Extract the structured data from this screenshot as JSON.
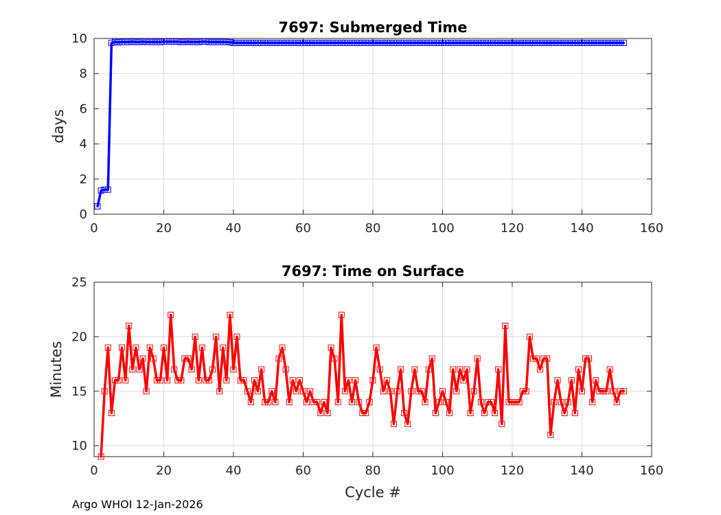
{
  "footer": {
    "text": "Argo WHOI 12-Jan-2026"
  },
  "chart_data": [
    {
      "type": "line",
      "title": "7697: Submerged Time",
      "xlabel": "",
      "ylabel": "days",
      "xlim": [
        0,
        160
      ],
      "ylim": [
        0,
        10
      ],
      "xticks": [
        0,
        20,
        40,
        60,
        80,
        100,
        120,
        140,
        160
      ],
      "yticks": [
        0,
        2,
        4,
        6,
        8,
        10
      ],
      "grid": true,
      "marker": "square",
      "color": "#0000ff",
      "series": [
        {
          "x": [
            1,
            2,
            3,
            4,
            5,
            6,
            7,
            8,
            9,
            10,
            11,
            12,
            13,
            14,
            15,
            16,
            17,
            18,
            19,
            20,
            21,
            22,
            23,
            24,
            25,
            26,
            27,
            28,
            29,
            30,
            31,
            32,
            33,
            34,
            35,
            36,
            37,
            38,
            39,
            40,
            41,
            42,
            43,
            44,
            45,
            46,
            47,
            48,
            49,
            50,
            51,
            52,
            53,
            54,
            55,
            56,
            57,
            58,
            59,
            60,
            61,
            62,
            63,
            64,
            65,
            66,
            67,
            68,
            69,
            70,
            71,
            72,
            73,
            74,
            75,
            76,
            77,
            78,
            79,
            80,
            81,
            82,
            83,
            84,
            85,
            86,
            87,
            88,
            89,
            90,
            91,
            92,
            93,
            94,
            95,
            96,
            97,
            98,
            99,
            100,
            101,
            102,
            103,
            104,
            105,
            106,
            107,
            108,
            109,
            110,
            111,
            112,
            113,
            114,
            115,
            116,
            117,
            118,
            119,
            120,
            121,
            122,
            123,
            124,
            125,
            126,
            127,
            128,
            129,
            130,
            131,
            132,
            133,
            134,
            135,
            136,
            137,
            138,
            139,
            140,
            141,
            142,
            143,
            144,
            145,
            146,
            147,
            148,
            149,
            150,
            151,
            152
          ],
          "values": [
            0.45,
            1.35,
            1.4,
            1.4,
            9.75,
            9.8,
            9.78,
            9.8,
            9.8,
            9.8,
            9.82,
            9.8,
            9.8,
            9.82,
            9.8,
            9.8,
            9.8,
            9.8,
            9.8,
            9.82,
            9.82,
            9.82,
            9.82,
            9.82,
            9.8,
            9.8,
            9.82,
            9.8,
            9.8,
            9.8,
            9.82,
            9.82,
            9.8,
            9.8,
            9.8,
            9.8,
            9.8,
            9.8,
            9.78,
            9.75,
            9.75,
            9.75,
            9.75,
            9.75,
            9.75,
            9.75,
            9.75,
            9.75,
            9.75,
            9.75,
            9.75,
            9.75,
            9.75,
            9.75,
            9.75,
            9.75,
            9.75,
            9.75,
            9.75,
            9.75,
            9.75,
            9.75,
            9.75,
            9.75,
            9.75,
            9.75,
            9.75,
            9.75,
            9.75,
            9.75,
            9.75,
            9.75,
            9.75,
            9.75,
            9.75,
            9.75,
            9.75,
            9.75,
            9.75,
            9.75,
            9.75,
            9.75,
            9.75,
            9.75,
            9.75,
            9.75,
            9.75,
            9.75,
            9.75,
            9.75,
            9.75,
            9.75,
            9.75,
            9.75,
            9.75,
            9.75,
            9.75,
            9.75,
            9.75,
            9.75,
            9.75,
            9.75,
            9.75,
            9.75,
            9.75,
            9.75,
            9.75,
            9.75,
            9.75,
            9.75,
            9.75,
            9.75,
            9.75,
            9.75,
            9.75,
            9.75,
            9.75,
            9.75,
            9.75,
            9.75,
            9.75,
            9.75,
            9.75,
            9.75,
            9.75,
            9.75,
            9.75,
            9.75,
            9.75,
            9.75,
            9.75,
            9.75,
            9.75,
            9.75,
            9.75,
            9.75,
            9.75,
            9.75,
            9.75,
            9.75,
            9.75,
            9.75,
            9.75,
            9.75,
            9.75,
            9.75,
            9.75,
            9.75,
            9.75,
            9.75,
            9.75,
            9.75
          ]
        }
      ]
    },
    {
      "type": "line",
      "title": "7697: Time on Surface",
      "xlabel": "Cycle #",
      "ylabel": "Minutes",
      "xlim": [
        0,
        160
      ],
      "ylim": [
        9,
        25
      ],
      "xticks": [
        0,
        20,
        40,
        60,
        80,
        100,
        120,
        140,
        160
      ],
      "yticks": [
        10,
        15,
        20,
        25
      ],
      "grid": true,
      "marker": "square",
      "color": "#ff0000",
      "series": [
        {
          "x": [
            2,
            3,
            4,
            5,
            6,
            7,
            8,
            9,
            10,
            11,
            12,
            13,
            14,
            15,
            16,
            17,
            18,
            19,
            20,
            21,
            22,
            23,
            24,
            25,
            26,
            27,
            28,
            29,
            30,
            31,
            32,
            33,
            34,
            35,
            36,
            37,
            38,
            39,
            40,
            41,
            42,
            43,
            44,
            45,
            46,
            47,
            48,
            49,
            50,
            51,
            52,
            53,
            54,
            55,
            56,
            57,
            58,
            59,
            60,
            61,
            62,
            63,
            64,
            65,
            66,
            67,
            68,
            69,
            70,
            71,
            72,
            73,
            74,
            75,
            76,
            77,
            78,
            79,
            80,
            81,
            82,
            83,
            84,
            85,
            86,
            87,
            88,
            89,
            90,
            91,
            92,
            93,
            94,
            95,
            96,
            97,
            98,
            99,
            100,
            101,
            102,
            103,
            104,
            105,
            106,
            107,
            108,
            109,
            110,
            111,
            112,
            113,
            114,
            115,
            116,
            117,
            118,
            119,
            120,
            121,
            122,
            123,
            124,
            125,
            126,
            127,
            128,
            129,
            130,
            131,
            132,
            133,
            134,
            135,
            136,
            137,
            138,
            139,
            140,
            141,
            142,
            143,
            144,
            145,
            146,
            147,
            148,
            149,
            150,
            151,
            152
          ],
          "values": [
            9,
            15,
            19,
            13,
            16,
            16,
            19,
            16,
            21,
            17,
            19,
            17,
            18,
            15,
            19,
            18,
            16,
            16,
            19,
            16,
            22,
            17,
            16,
            16,
            18,
            18,
            17,
            20,
            16,
            19,
            16,
            16,
            17,
            20,
            15,
            19,
            16,
            22,
            17,
            20,
            16,
            16,
            15,
            14,
            16,
            15,
            17,
            14,
            14,
            15,
            14,
            18,
            19,
            17,
            14,
            16,
            15,
            16,
            15,
            14,
            15,
            14,
            14,
            13,
            14,
            13,
            19,
            18,
            14,
            22,
            15,
            16,
            14,
            16,
            14,
            13,
            13,
            14,
            16,
            19,
            17,
            15,
            16,
            15,
            12,
            15,
            17,
            13,
            12,
            15,
            17,
            15,
            15,
            14,
            17,
            18,
            13,
            14,
            15,
            14,
            13,
            17,
            15,
            17,
            16,
            17,
            13,
            15,
            18,
            14,
            13,
            14,
            14,
            13,
            17,
            12,
            21,
            14,
            14,
            14,
            14,
            15,
            15,
            20,
            18,
            18,
            17,
            18,
            18,
            11,
            14,
            16,
            14,
            13,
            14,
            16,
            13,
            17,
            15,
            18,
            18,
            14,
            16,
            15,
            15,
            15,
            17,
            15,
            14,
            15,
            15
          ]
        }
      ]
    }
  ]
}
